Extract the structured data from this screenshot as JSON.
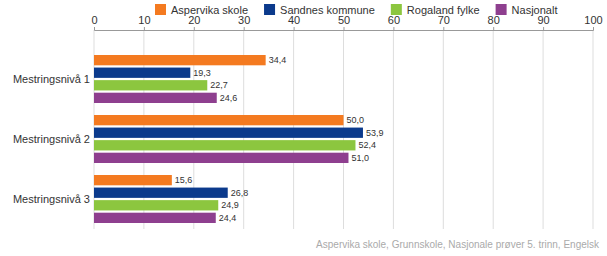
{
  "chart_data": {
    "type": "bar",
    "orientation": "horizontal",
    "categories": [
      "Mestringsnivå 1",
      "Mestringsnivå 2",
      "Mestringsnivå 3"
    ],
    "series": [
      {
        "name": "Aspervika skole",
        "color": "#f47a20",
        "values": [
          34.4,
          50.0,
          15.6
        ],
        "value_labels": [
          "34,4",
          "50,0",
          "15,6"
        ]
      },
      {
        "name": "Sandnes kommune",
        "color": "#0b3a8c",
        "values": [
          19.3,
          53.9,
          26.8
        ],
        "value_labels": [
          "19,3",
          "53,9",
          "26,8"
        ]
      },
      {
        "name": "Rogaland fylke",
        "color": "#8cc63f",
        "values": [
          22.7,
          52.4,
          24.9
        ],
        "value_labels": [
          "22,7",
          "52,4",
          "24,9"
        ]
      },
      {
        "name": "Nasjonalt",
        "color": "#8e3f8f",
        "values": [
          24.6,
          51.0,
          24.4
        ],
        "value_labels": [
          "24,6",
          "51,0",
          "24,4"
        ]
      }
    ],
    "xlim": [
      0,
      100
    ],
    "xticks": [
      0,
      10,
      20,
      30,
      40,
      50,
      60,
      70,
      80,
      90,
      100
    ],
    "grid": true,
    "legend": "top",
    "data_labels": true,
    "annotations": [
      "Aspervika skole, Grunnskole, Nasjonale prøver 5. trinn, Engelsk"
    ]
  }
}
